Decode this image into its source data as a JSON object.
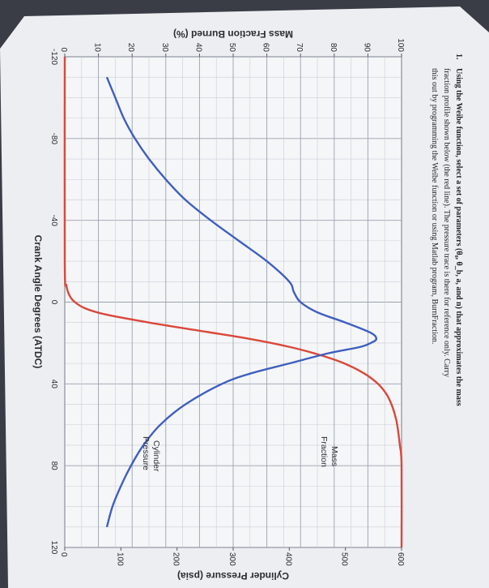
{
  "problem": {
    "number": "1.",
    "line1": "Using the Weibe function, select a set of parameters (θ₀, θ_b, a, and n) that approximates the mass",
    "line2": "fraction profile shown below (the red line). The pressure trace is there for reference only. Carry",
    "line3": "this out by programming the Weibe function or using Matlab program, BurnFraction."
  },
  "chart_data": {
    "type": "line",
    "xlabel": "Crank Angle Degrees (ATDC)",
    "ylabel_left": "Mass Fraction Burned (%)",
    "ylabel_right": "Cylinder Pressure (psia)",
    "xlim": [
      -120,
      120
    ],
    "ylim_left": [
      0,
      100
    ],
    "ylim_right": [
      0,
      600
    ],
    "x_ticks": [
      "-120",
      "-80",
      "-40",
      "0",
      "40",
      "80",
      "120"
    ],
    "x_tick_values": [
      -120,
      -80,
      -40,
      0,
      40,
      80,
      120
    ],
    "y_left_ticks": [
      "0",
      "10",
      "20",
      "30",
      "40",
      "50",
      "60",
      "70",
      "80",
      "90",
      "100"
    ],
    "y_left_tick_values": [
      0,
      10,
      20,
      30,
      40,
      50,
      60,
      70,
      80,
      90,
      100
    ],
    "y_right_ticks": [
      "0",
      "100",
      "200",
      "300",
      "400",
      "500",
      "600"
    ],
    "y_right_tick_values": [
      0,
      100,
      200,
      300,
      400,
      500,
      600
    ],
    "grid": true,
    "series": [
      {
        "name": "Mass Fraction",
        "axis": "left",
        "color": "#d9483b",
        "x": [
          -120,
          -20,
          -8,
          -3,
          0,
          3,
          6,
          10,
          14,
          18,
          22,
          26,
          30,
          35,
          40,
          45,
          50,
          55,
          60,
          70,
          80,
          120
        ],
        "y": [
          0,
          0,
          0.5,
          1.5,
          3,
          6,
          12,
          25,
          40,
          55,
          67,
          76,
          83,
          89,
          93,
          95.5,
          97,
          98,
          98.7,
          99.5,
          100,
          100
        ]
      },
      {
        "name": "Cylinder Pressure",
        "axis": "right",
        "color": "#3f5fbf",
        "x": [
          -110,
          -100,
          -90,
          -80,
          -70,
          -60,
          -50,
          -40,
          -30,
          -20,
          -10,
          -5,
          0,
          5,
          10,
          15,
          18,
          20,
          22,
          25,
          30,
          35,
          40,
          50,
          60,
          70,
          80,
          90,
          100,
          110
        ],
        "y": [
          75,
          90,
          105,
          125,
          150,
          180,
          215,
          260,
          310,
          360,
          400,
          408,
          420,
          450,
          500,
          545,
          555,
          545,
          525,
          470,
          400,
          330,
          280,
          215,
          170,
          140,
          118,
          100,
          85,
          75
        ]
      }
    ]
  }
}
